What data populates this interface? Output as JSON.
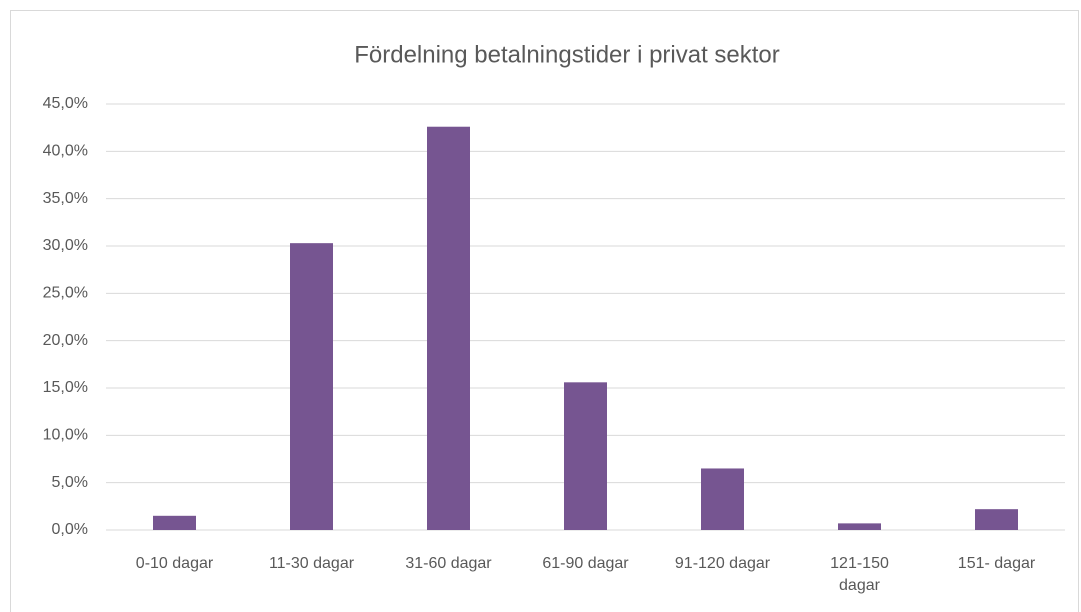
{
  "chart_data": {
    "type": "bar",
    "title": "Fördelning betalningstider i privat sektor",
    "categories": [
      "0-10 dagar",
      "11-30 dagar",
      "31-60 dagar",
      "61-90 dagar",
      "91-120 dagar",
      "121-150 dagar",
      "151- dagar"
    ],
    "values": [
      1.5,
      30.3,
      42.6,
      15.6,
      6.5,
      0.7,
      2.2
    ],
    "color": "#765591",
    "ylim": [
      0,
      45
    ],
    "yticks": [
      {
        "value": 0,
        "label": "0,0%"
      },
      {
        "value": 5,
        "label": "5,0%"
      },
      {
        "value": 10,
        "label": "10,0%"
      },
      {
        "value": 15,
        "label": "15,0%"
      },
      {
        "value": 20,
        "label": "20,0%"
      },
      {
        "value": 25,
        "label": "25,0%"
      },
      {
        "value": 30,
        "label": "30,0%"
      },
      {
        "value": 35,
        "label": "35,0%"
      },
      {
        "value": 40,
        "label": "40,0%"
      },
      {
        "value": 45,
        "label": "45,0%"
      }
    ],
    "grid": true
  }
}
